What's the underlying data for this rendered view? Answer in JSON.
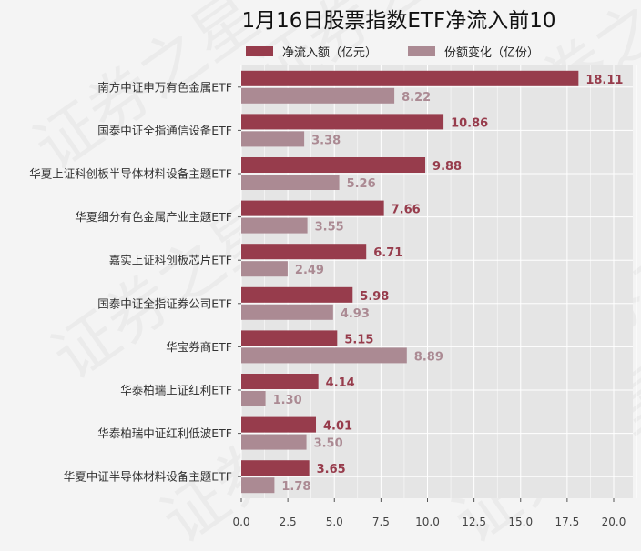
{
  "watermark": "证券之星",
  "chart_data": {
    "type": "bar",
    "orientation": "horizontal",
    "title": "1月16日股票指数ETF净流入前10",
    "xlabel": "",
    "ylabel": "",
    "xlim": [
      0,
      21
    ],
    "xticks": [
      "0.0",
      "2.5",
      "5.0",
      "7.5",
      "10.0",
      "12.5",
      "15.0",
      "17.5",
      "20.0"
    ],
    "grid": true,
    "legend_position": "top",
    "categories": [
      "南方中证申万有色金属ETF",
      "国泰中证全指通信设备ETF",
      "华夏上证科创板半导体材料设备主题ETF",
      "华夏细分有色金属产业主题ETF",
      "嘉实上证科创板芯片ETF",
      "国泰中证全指证券公司ETF",
      "华宝券商ETF",
      "华泰柏瑞上证红利ETF",
      "华泰柏瑞中证红利低波ETF",
      "华夏中证半导体材料设备主题ETF"
    ],
    "series": [
      {
        "name": "净流入额（亿元）",
        "color": "#973c4c",
        "values": [
          18.11,
          10.86,
          9.88,
          7.66,
          6.71,
          5.98,
          5.15,
          4.14,
          4.01,
          3.65
        ],
        "labels": [
          "18.11",
          "10.86",
          "9.88",
          "7.66",
          "6.71",
          "5.98",
          "5.15",
          "4.14",
          "4.01",
          "3.65"
        ]
      },
      {
        "name": "份额变化（亿份）",
        "color": "#ab8a93",
        "values": [
          8.22,
          3.38,
          5.26,
          3.55,
          2.49,
          4.93,
          8.89,
          1.3,
          3.5,
          1.78
        ],
        "labels": [
          "8.22",
          "3.38",
          "5.26",
          "3.55",
          "2.49",
          "4.93",
          "8.89",
          "1.30",
          "3.50",
          "1.78"
        ]
      }
    ]
  }
}
